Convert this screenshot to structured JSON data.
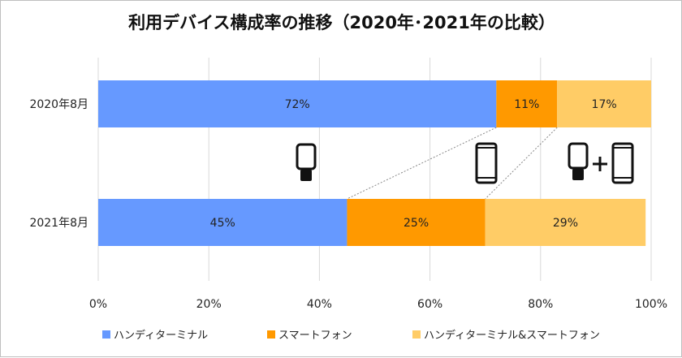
{
  "chart_data": {
    "type": "bar",
    "orientation": "horizontal",
    "stacked": true,
    "title": "利用デバイス構成率の推移（2020年･2021年の比較）",
    "categories": [
      "2020年8月",
      "2021年8月"
    ],
    "series": [
      {
        "name": "ハンディターミナル",
        "values": [
          72,
          45
        ],
        "labels": [
          "72%",
          "45%"
        ],
        "color": "#6699ff"
      },
      {
        "name": "スマートフォン",
        "values": [
          11,
          25
        ],
        "labels": [
          "11%",
          "25%"
        ],
        "color": "#ff9900"
      },
      {
        "name": "ハンディターミナル&スマートフォン",
        "values": [
          17,
          29
        ],
        "labels": [
          "17%",
          "29%"
        ],
        "color": "#ffcc66"
      }
    ],
    "xlim": [
      0,
      100
    ],
    "xticks": [
      0,
      20,
      40,
      60,
      80,
      100
    ],
    "xtick_labels": [
      "0%",
      "20%",
      "40%",
      "60%",
      "80%",
      "100%"
    ],
    "grid": true,
    "legend_position": "bottom",
    "series_connectors": true,
    "icons": [
      "handy-terminal-icon",
      "smartphone-icon",
      "handy-terminal-plus-smartphone-icon"
    ]
  }
}
